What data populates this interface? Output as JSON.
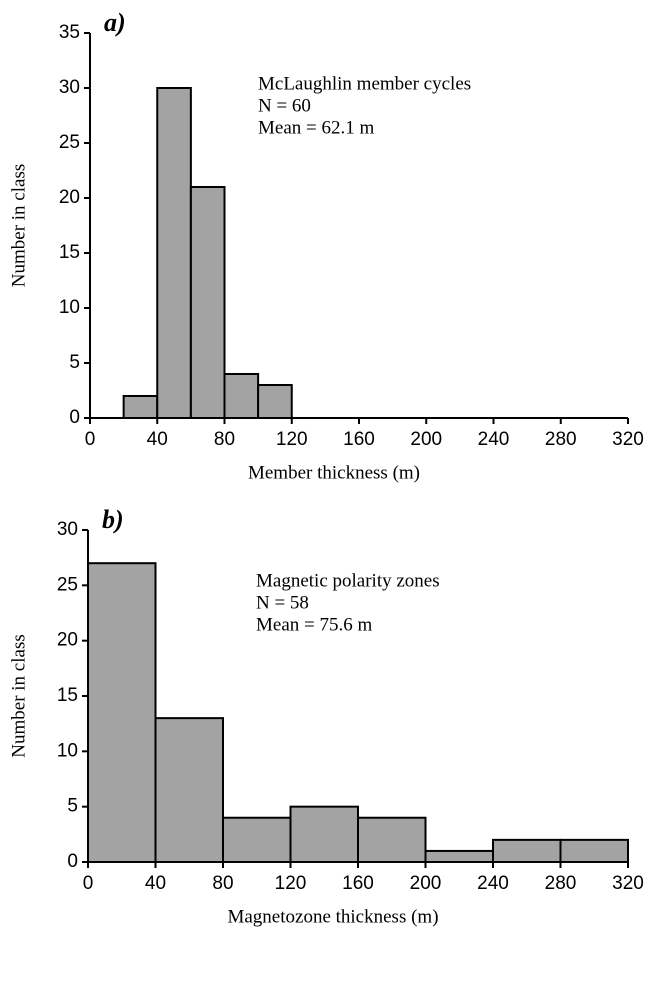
{
  "chart_data": [
    {
      "type": "histogram",
      "panel_label": "a)",
      "annotations": [
        "McLaughlin member cycles",
        "N = 60",
        "Mean = 62.1 m"
      ],
      "x_label": "Member thickness (m)",
      "y_label": "Number in class",
      "bins": [
        20,
        40,
        60,
        80,
        100,
        120
      ],
      "counts": [
        2,
        30,
        21,
        4,
        3
      ],
      "color": "#a3a3a3",
      "xlim": [
        0,
        320
      ],
      "xticks": [
        0,
        40,
        80,
        120,
        160,
        200,
        240,
        280,
        320
      ],
      "ylim": [
        0,
        35
      ],
      "yticks": [
        0,
        5,
        10,
        15,
        20,
        25,
        30,
        35
      ]
    },
    {
      "type": "histogram",
      "panel_label": "b)",
      "annotations": [
        "Magnetic polarity zones",
        "N = 58",
        "Mean = 75.6 m"
      ],
      "x_label": "Magnetozone thickness (m)",
      "y_label": "Number in class",
      "bins": [
        0,
        40,
        80,
        120,
        160,
        200,
        240,
        280,
        320
      ],
      "counts": [
        27,
        13,
        4,
        5,
        4,
        1,
        2,
        2
      ],
      "color": "#a3a3a3",
      "xlim": [
        0,
        320
      ],
      "xticks": [
        0,
        40,
        80,
        120,
        160,
        200,
        240,
        280,
        320
      ],
      "ylim": [
        0,
        30
      ],
      "yticks": [
        0,
        5,
        10,
        15,
        20,
        25,
        30
      ]
    }
  ]
}
